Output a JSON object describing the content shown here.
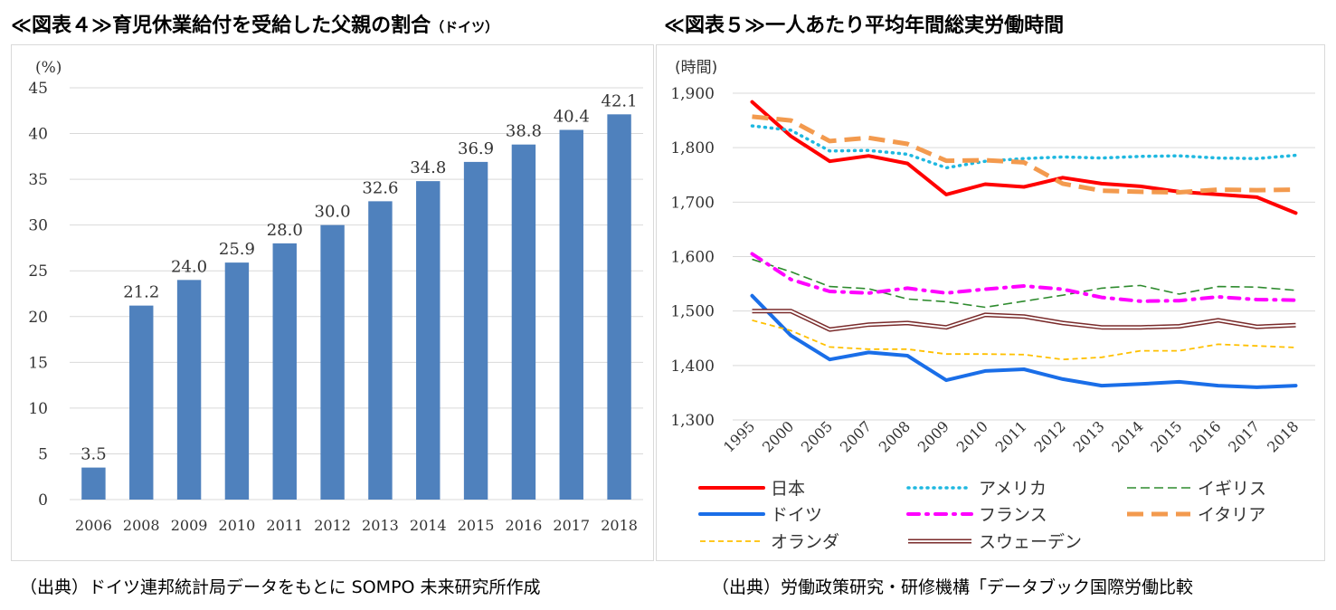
{
  "chart4": {
    "title_main": "≪図表４≫育児休業給付を受給した父親の割合",
    "title_sub": "（ドイツ）",
    "source": "（出典）ドイツ連邦統計局データをもとに SOMPO 未来研究所作成"
  },
  "chart5": {
    "title_main": "≪図表５≫一人あたり平均年間総実労働時間",
    "source": "（出典）労働政策研究・研修機構「データブック国際労働比較"
  },
  "chart_data": [
    {
      "type": "bar",
      "ylabel": "(%)",
      "ylim": [
        0,
        45
      ],
      "yticks": [
        "0",
        "5",
        "10",
        "15",
        "20",
        "25",
        "30",
        "35",
        "40",
        "45"
      ],
      "categories": [
        "2006",
        "2008",
        "2009",
        "2010",
        "2011",
        "2012",
        "2013",
        "2014",
        "2015",
        "2016",
        "2017",
        "2018"
      ],
      "values": [
        3.5,
        21.2,
        24.0,
        25.9,
        28.0,
        30.0,
        32.6,
        34.8,
        36.9,
        38.8,
        40.4,
        42.1
      ],
      "data_labels": [
        "3.5",
        "21.2",
        "24.0",
        "25.9",
        "28.0",
        "30.0",
        "32.6",
        "34.8",
        "36.9",
        "38.8",
        "40.4",
        "42.1"
      ],
      "bar_color": "#4f81bd",
      "grid": true
    },
    {
      "type": "line",
      "ylabel": "(時間)",
      "ylim": [
        1300,
        1900
      ],
      "yticks": [
        "1,300",
        "1,400",
        "1,500",
        "1,600",
        "1,700",
        "1,800",
        "1,900"
      ],
      "categories": [
        "1995",
        "2000",
        "2005",
        "2007",
        "2008",
        "2009",
        "2010",
        "2011",
        "2012",
        "2013",
        "2014",
        "2015",
        "2016",
        "2017",
        "2018"
      ],
      "legend_position": "bottom",
      "grid": true,
      "series": [
        {
          "name": "日本",
          "color": "#ff0000",
          "style": "solid",
          "values": [
            1884,
            1821,
            1775,
            1785,
            1771,
            1714,
            1733,
            1728,
            1745,
            1734,
            1729,
            1719,
            1714,
            1709,
            1680
          ]
        },
        {
          "name": "アメリカ",
          "color": "#1fb8e0",
          "style": "dotted",
          "values": [
            1840,
            1832,
            1794,
            1795,
            1788,
            1763,
            1775,
            1780,
            1783,
            1781,
            1784,
            1785,
            1781,
            1780,
            1786
          ]
        },
        {
          "name": "イギリス",
          "color": "#2e8b2e",
          "style": "dashed",
          "values": [
            1595,
            1572,
            1545,
            1541,
            1522,
            1517,
            1507,
            1518,
            1529,
            1542,
            1547,
            1531,
            1545,
            1544,
            1538
          ]
        },
        {
          "name": "ドイツ",
          "color": "#1a6ee8",
          "style": "solid",
          "values": [
            1528,
            1455,
            1411,
            1424,
            1418,
            1373,
            1390,
            1393,
            1375,
            1363,
            1366,
            1370,
            1363,
            1360,
            1363
          ]
        },
        {
          "name": "フランス",
          "color": "#ff00ff",
          "style": "dashdot",
          "values": [
            1605,
            1558,
            1536,
            1533,
            1542,
            1533,
            1540,
            1546,
            1540,
            1525,
            1518,
            1519,
            1526,
            1521,
            1520
          ]
        },
        {
          "name": "イタリア",
          "color": "#f39a4e",
          "style": "longdash",
          "values": [
            1857,
            1850,
            1812,
            1818,
            1807,
            1776,
            1777,
            1773,
            1734,
            1721,
            1719,
            1718,
            1723,
            1722,
            1723
          ]
        },
        {
          "name": "オランダ",
          "color": "#ffc000",
          "style": "shortdash",
          "values": [
            1483,
            1464,
            1434,
            1430,
            1430,
            1421,
            1421,
            1420,
            1411,
            1415,
            1427,
            1427,
            1439,
            1436,
            1433
          ]
        },
        {
          "name": "スウェーデン",
          "color": "#7a2b2b",
          "style": "double",
          "values": [
            1500,
            1500,
            1466,
            1475,
            1478,
            1470,
            1493,
            1490,
            1478,
            1470,
            1470,
            1472,
            1483,
            1471,
            1474
          ]
        }
      ]
    }
  ]
}
